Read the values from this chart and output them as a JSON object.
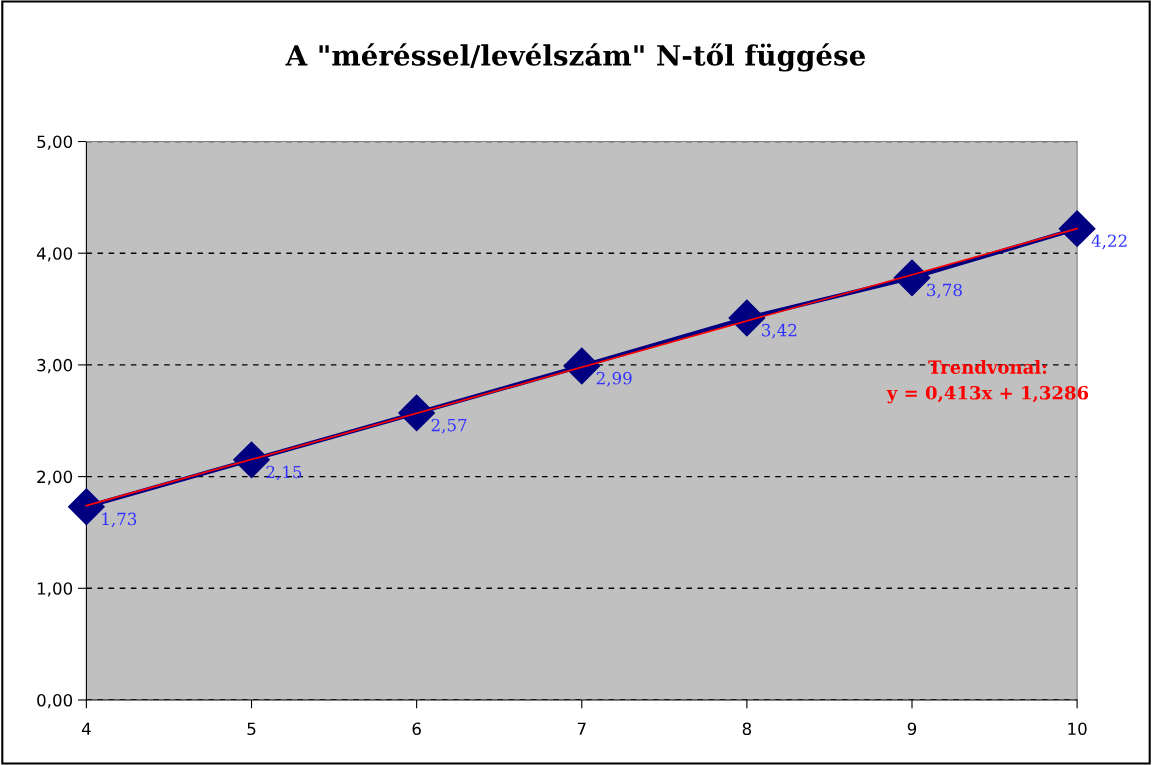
{
  "chart_data": {
    "type": "line",
    "title": "A \"méréssel/levélszám\" N-től függése",
    "x": [
      4,
      5,
      6,
      7,
      8,
      9,
      10
    ],
    "series": [
      {
        "color": "#000080",
        "marker": "diamond",
        "values": [
          1.73,
          2.15,
          2.57,
          2.99,
          3.42,
          3.78,
          4.22
        ],
        "value_labels": [
          "1,73",
          "2,15",
          "2,57",
          "2,99",
          "3,42",
          "3,78",
          "4,22"
        ]
      },
      {
        "color": "#ff0000",
        "marker": "none",
        "x": [
          4,
          10
        ],
        "values": [
          1.74,
          4.22
        ]
      }
    ],
    "xlim": [
      4,
      10
    ],
    "xticks": [
      4,
      5,
      6,
      7,
      8,
      9,
      10
    ],
    "ylim": [
      0,
      5
    ],
    "yticks": [
      {
        "value": 0,
        "label": "0,00"
      },
      {
        "value": 1,
        "label": "1,00"
      },
      {
        "value": 2,
        "label": "2,00"
      },
      {
        "value": 3,
        "label": "3,00"
      },
      {
        "value": 4,
        "label": "4,00"
      },
      {
        "value": 5,
        "label": "5,00"
      }
    ],
    "grid": "y",
    "annotations": [
      "Trendvonal:\ny = 0,413x + 1,3286"
    ]
  }
}
